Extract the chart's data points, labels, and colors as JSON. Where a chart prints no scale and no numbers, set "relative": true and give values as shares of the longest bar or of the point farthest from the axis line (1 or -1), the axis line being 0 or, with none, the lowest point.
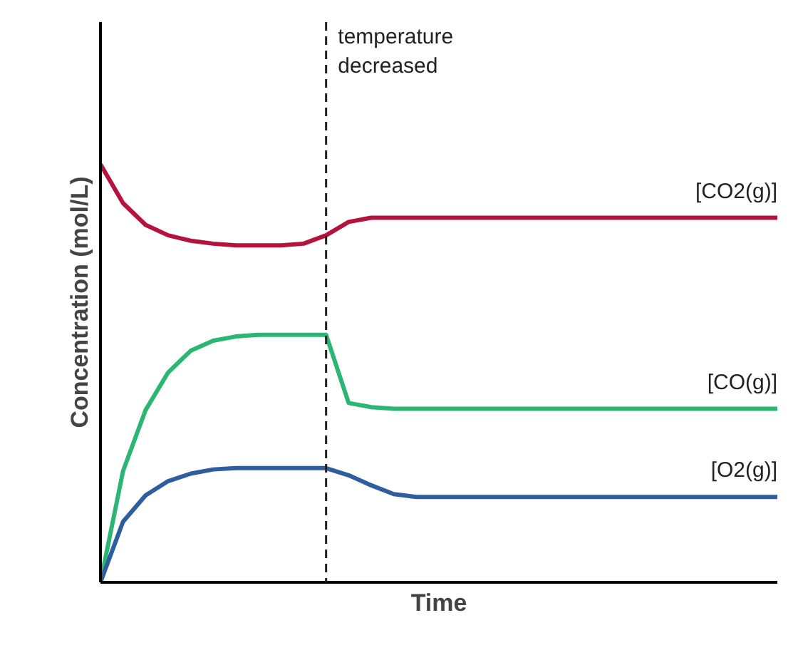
{
  "chart_data": {
    "type": "line",
    "relative": true,
    "xlabel": "Time",
    "ylabel": "Concentration (mol/L)",
    "categories": [
      null,
      null,
      null,
      null,
      null,
      null,
      null,
      null,
      null,
      null,
      null,
      null,
      null,
      null,
      null,
      null,
      null,
      null,
      null,
      null,
      null,
      null,
      null,
      null,
      null,
      null,
      null,
      null,
      null,
      null,
      null
    ],
    "series": [
      {
        "name": "[CO2(g)]",
        "color": "#b5123e",
        "values": [
          1,
          0.907,
          0.855,
          0.83,
          0.817,
          0.81,
          0.806,
          0.806,
          0.806,
          0.81,
          0.83,
          0.862,
          0.872,
          0.872,
          0.872,
          0.872,
          0.872,
          0.872,
          0.872,
          0.872,
          0.872,
          0.872,
          0.872,
          0.872,
          0.872,
          0.872,
          0.872,
          0.872,
          0.872,
          0.872,
          0.872
        ]
      },
      {
        "name": "[CO(g)]",
        "color": "#2bb673",
        "values": [
          0,
          0.266,
          0.412,
          0.502,
          0.554,
          0.578,
          0.588,
          0.592,
          0.592,
          0.592,
          0.592,
          0.429,
          0.419,
          0.415,
          0.415,
          0.415,
          0.415,
          0.415,
          0.415,
          0.415,
          0.415,
          0.415,
          0.415,
          0.415,
          0.415,
          0.415,
          0.415,
          0.415,
          0.415,
          0.415,
          0.415
        ]
      },
      {
        "name": "[O2(g)]",
        "color": "#2e5e9e",
        "values": [
          0,
          0.145,
          0.208,
          0.242,
          0.26,
          0.27,
          0.273,
          0.273,
          0.273,
          0.273,
          0.273,
          0.256,
          0.232,
          0.211,
          0.204,
          0.204,
          0.204,
          0.204,
          0.204,
          0.204,
          0.204,
          0.204,
          0.204,
          0.204,
          0.204,
          0.204,
          0.204,
          0.204,
          0.204,
          0.204,
          0.204
        ]
      }
    ],
    "annotations": [
      "temperature decreased"
    ],
    "legend": false,
    "marker": "none",
    "line_style": "solid"
  }
}
